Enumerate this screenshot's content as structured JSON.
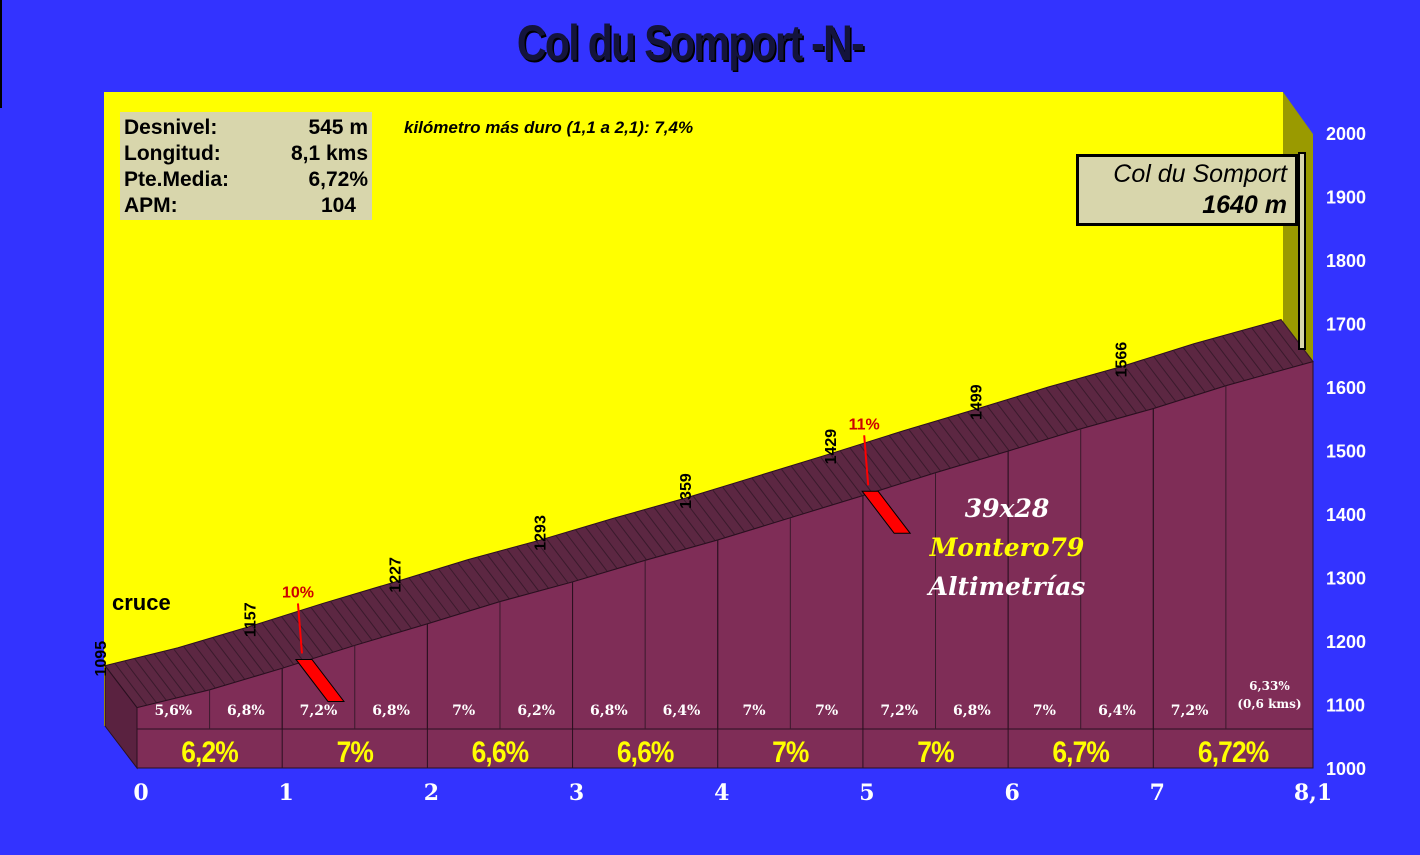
{
  "title": "Col du Somport -N-",
  "stats": [
    {
      "label": "Desnivel:",
      "value": "545 m"
    },
    {
      "label": "Longitud:",
      "value": "8,1 kms"
    },
    {
      "label": "Pte.Media:",
      "value": "6,72%"
    },
    {
      "label": "APM:",
      "value": "104"
    }
  ],
  "hardest_km": "kilómetro más duro (1,1 a 2,1):  7,4%",
  "summit": {
    "name": "Col du Somport",
    "altitude": "1640 m"
  },
  "start_label": "cruce",
  "credits": {
    "gear": "39x28",
    "author": "Montero79",
    "site": "Altimetrías"
  },
  "colors": {
    "background": "#3333ff",
    "plot": "#ffff00",
    "profile": "#7f2d57",
    "top_band": "#5c2742",
    "highlight": "#ff0000",
    "percent_text": "#ffff00"
  },
  "chart_data": {
    "type": "area",
    "title": "Col du Somport -N-",
    "xlim": [
      0,
      8.1
    ],
    "ylim": [
      1000,
      2000
    ],
    "x_ticks": [
      {
        "value": 0,
        "label": "0"
      },
      {
        "value": 1,
        "label": "1"
      },
      {
        "value": 2,
        "label": "2"
      },
      {
        "value": 3,
        "label": "3"
      },
      {
        "value": 4,
        "label": "4"
      },
      {
        "value": 5,
        "label": "5"
      },
      {
        "value": 6,
        "label": "6"
      },
      {
        "value": 7,
        "label": "7"
      },
      {
        "value": 8.1,
        "label": "8,1"
      }
    ],
    "y_ticks": [
      1000,
      1100,
      1200,
      1300,
      1400,
      1500,
      1600,
      1700,
      1800,
      1900,
      2000
    ],
    "profile": {
      "x": [
        0,
        0.5,
        1,
        1.5,
        2,
        2.5,
        3,
        3.5,
        4,
        4.5,
        5,
        5.5,
        6,
        6.5,
        7,
        7.5,
        8.1
      ],
      "y": [
        1095,
        1123,
        1157,
        1193,
        1227,
        1262,
        1293,
        1327,
        1359,
        1394,
        1429,
        1465,
        1499,
        1534,
        1566,
        1602,
        1640
      ]
    },
    "altitude_labels": [
      {
        "km": 0,
        "label": "1095"
      },
      {
        "km": 1,
        "label": "1157"
      },
      {
        "km": 2,
        "label": "1227"
      },
      {
        "km": 3,
        "label": "1293"
      },
      {
        "km": 4,
        "label": "1359"
      },
      {
        "km": 5,
        "label": "1429"
      },
      {
        "km": 6,
        "label": "1499"
      },
      {
        "km": 7,
        "label": "1566"
      }
    ],
    "segment_gradients": [
      {
        "from": 0,
        "to": 0.5,
        "label": "5,6%"
      },
      {
        "from": 0.5,
        "to": 1,
        "label": "6,8%"
      },
      {
        "from": 1,
        "to": 1.5,
        "label": "7,2%"
      },
      {
        "from": 1.5,
        "to": 2,
        "label": "6,8%"
      },
      {
        "from": 2,
        "to": 2.5,
        "label": "7%"
      },
      {
        "from": 2.5,
        "to": 3,
        "label": "6,2%"
      },
      {
        "from": 3,
        "to": 3.5,
        "label": "6,8%"
      },
      {
        "from": 3.5,
        "to": 4,
        "label": "6,4%"
      },
      {
        "from": 4,
        "to": 4.5,
        "label": "7%"
      },
      {
        "from": 4.5,
        "to": 5,
        "label": "7%"
      },
      {
        "from": 5,
        "to": 5.5,
        "label": "7,2%"
      },
      {
        "from": 5.5,
        "to": 6,
        "label": "6,8%"
      },
      {
        "from": 6,
        "to": 6.5,
        "label": "7%"
      },
      {
        "from": 6.5,
        "to": 7,
        "label": "6,4%"
      },
      {
        "from": 7,
        "to": 7.5,
        "label": "7,2%"
      },
      {
        "from": 7.5,
        "to": 8.1,
        "label": "6,33%",
        "sublabel": "(0,6 kms)"
      }
    ],
    "km_gradients": [
      {
        "from": 0,
        "to": 1,
        "label": "6,2%"
      },
      {
        "from": 1,
        "to": 2,
        "label": "7%"
      },
      {
        "from": 2,
        "to": 3,
        "label": "6,6%"
      },
      {
        "from": 3,
        "to": 4,
        "label": "6,6%"
      },
      {
        "from": 4,
        "to": 5,
        "label": "7%"
      },
      {
        "from": 5,
        "to": 6,
        "label": "7%"
      },
      {
        "from": 6,
        "to": 7,
        "label": "6,7%"
      },
      {
        "from": 7,
        "to": 8.1,
        "label": "6,72%"
      }
    ],
    "max_gradient_marks": [
      {
        "km": 1.15,
        "label": "10%"
      },
      {
        "km": 5.05,
        "label": "11%"
      }
    ]
  }
}
